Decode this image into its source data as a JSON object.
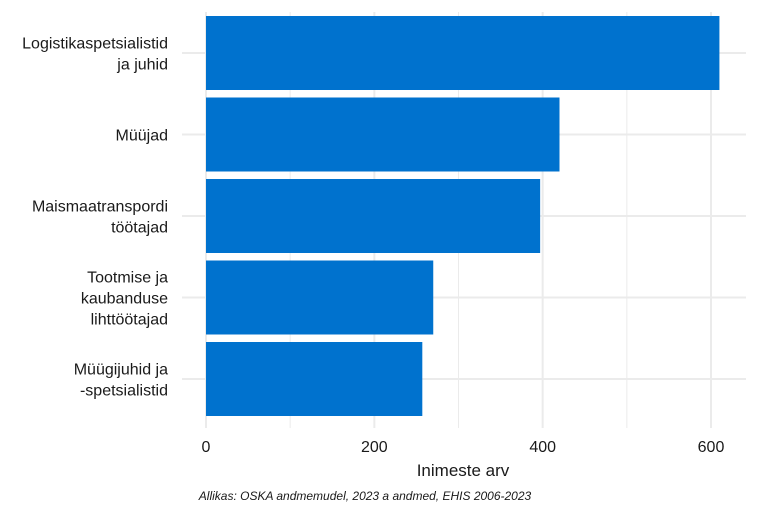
{
  "chart_data": {
    "type": "bar",
    "orientation": "horizontal",
    "categories": [
      [
        "Logistikaspetsialistid",
        "ja juhid"
      ],
      [
        "Müüjad"
      ],
      [
        "Maismaatranspordi",
        "töötajad"
      ],
      [
        "Tootmise ja",
        "kaubanduse",
        "lihttöötajad"
      ],
      [
        "Müügijuhid ja",
        "-spetsialistid"
      ]
    ],
    "values": [
      610,
      420,
      397,
      270,
      257
    ],
    "xlabel": "Inimeste arv",
    "ylabel": "",
    "xlim": [
      0,
      640
    ],
    "xticks": [
      0,
      200,
      400,
      600
    ],
    "grid": true,
    "bar_color": "#0072CE",
    "grid_color": "#EBEBEB"
  },
  "caption": "Allikas: OSKA andmemudel, 2023 a andmed, EHIS 2006-2023"
}
